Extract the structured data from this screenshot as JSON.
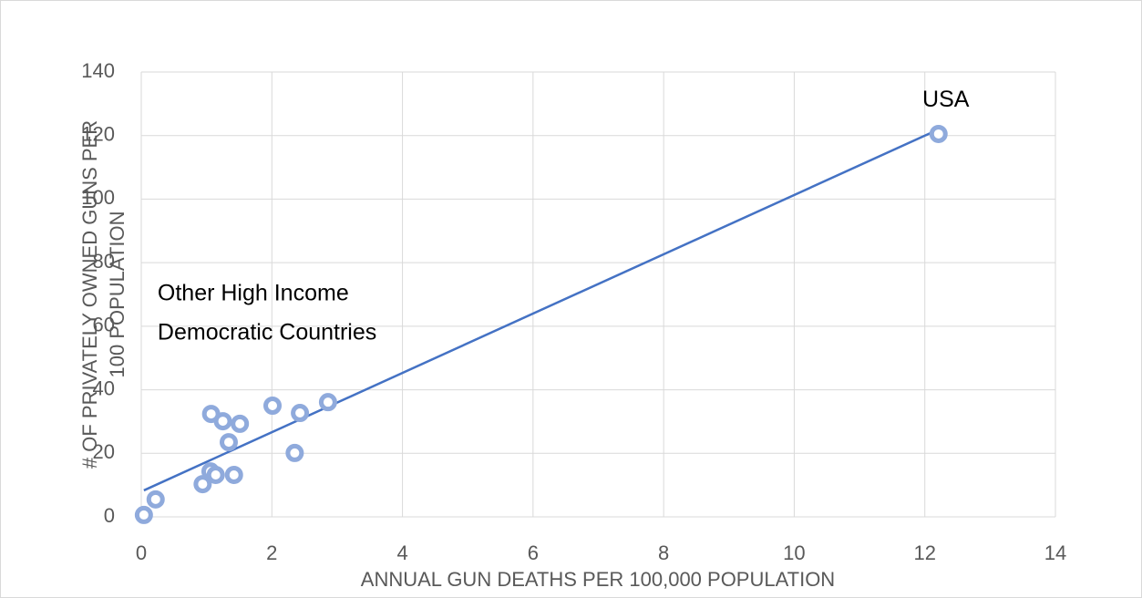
{
  "chart_data": {
    "type": "scatter",
    "x_label": "ANNUAL GUN DEATHS PER 100,000 POPULATION",
    "y_label": [
      "# OF PRIVATELY OWNED GUNS PER",
      "100 POPULATION"
    ],
    "annotations": [
      {
        "text": [
          "USA"
        ],
        "x": 12.21,
        "y": 131
      },
      {
        "text": [
          "Other High Income",
          "Democratic Countries"
        ],
        "x": 0.25,
        "y": 70
      }
    ],
    "series": [
      {
        "color": "#8faadc",
        "x": [
          0.04,
          0.22,
          0.94,
          1.06,
          1.14,
          1.42,
          1.07,
          1.25,
          1.34,
          1.51,
          2.01,
          2.35,
          2.43,
          2.86,
          12.21
        ],
        "values": [
          0.6,
          5.5,
          10.3,
          14.3,
          13.2,
          13.2,
          32.4,
          30.1,
          23.5,
          29.3,
          35,
          20.1,
          32.7,
          36.1,
          120.5
        ]
      }
    ],
    "trendline": {
      "type": "linear",
      "color": "#4472c4"
    },
    "xlim": [
      0,
      14
    ],
    "xticks": [
      0,
      2,
      4,
      6,
      8,
      10,
      12,
      14
    ],
    "ylim": [
      0,
      140
    ],
    "yticks": [
      0,
      20,
      40,
      60,
      80,
      100,
      120,
      140
    ],
    "grid": true
  }
}
